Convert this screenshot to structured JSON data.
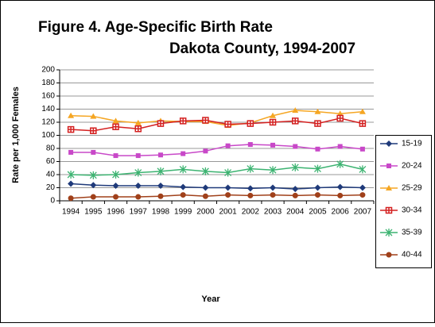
{
  "chart_data": {
    "type": "line",
    "title": "Figure 4. Age-Specific Birth Rate",
    "subtitle": "Dakota County, 1994-2007",
    "x_label": "Year",
    "y_label": "Rate per 1,000 Females",
    "categories": [
      "1994",
      "1995",
      "1996",
      "1997",
      "1998",
      "1999",
      "2000",
      "2001",
      "2002",
      "2003",
      "2004",
      "2005",
      "2006",
      "2007"
    ],
    "ylim": [
      0,
      200
    ],
    "yticks": [
      0,
      20,
      40,
      60,
      80,
      100,
      120,
      140,
      160,
      180,
      200
    ],
    "grid": true,
    "legend": "right",
    "series": [
      {
        "name": "15-19",
        "color": "#1f3a7a",
        "marker": "diamond",
        "values": [
          26,
          24,
          23,
          23,
          23,
          21,
          20,
          20,
          19,
          20,
          18,
          20,
          21,
          20
        ]
      },
      {
        "name": "20-24",
        "color": "#c848c8",
        "marker": "square",
        "values": [
          74,
          74,
          69,
          69,
          70,
          72,
          76,
          84,
          86,
          85,
          83,
          79,
          83,
          79
        ]
      },
      {
        "name": "25-29",
        "color": "#f5a623",
        "marker": "triangle",
        "values": [
          130,
          129,
          122,
          119,
          122,
          121,
          121,
          115,
          119,
          130,
          138,
          136,
          133,
          136
        ]
      },
      {
        "name": "30-34",
        "color": "#d42020",
        "marker": "plus-square",
        "values": [
          109,
          107,
          113,
          110,
          118,
          122,
          123,
          117,
          118,
          120,
          122,
          118,
          126,
          118
        ]
      },
      {
        "name": "35-39",
        "color": "#3cb371",
        "marker": "star",
        "values": [
          40,
          39,
          40,
          43,
          45,
          48,
          45,
          43,
          49,
          47,
          51,
          49,
          56,
          48
        ]
      },
      {
        "name": "40-44",
        "color": "#a0401a",
        "marker": "circle",
        "values": [
          4,
          6,
          6,
          6,
          7,
          9,
          7,
          9,
          8,
          9,
          8,
          9,
          8,
          9
        ]
      }
    ]
  }
}
